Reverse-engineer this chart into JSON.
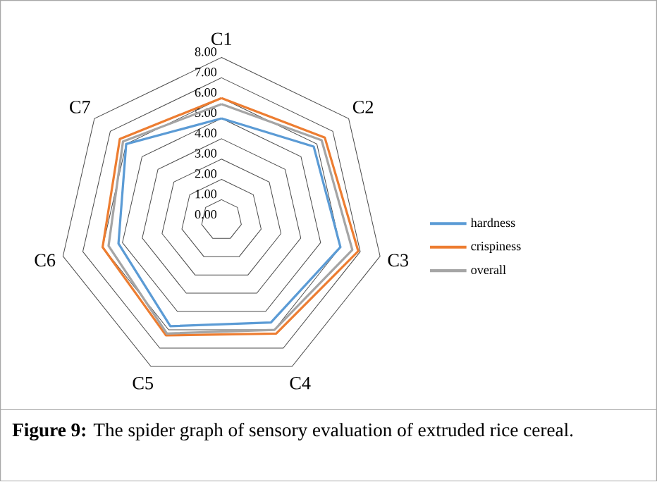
{
  "chart_data": {
    "type": "radar",
    "categories": [
      "C1",
      "C2",
      "C3",
      "C4",
      "C5",
      "C6",
      "C7"
    ],
    "series": [
      {
        "name": "hardness",
        "color": "#5b9bd5",
        "values": [
          5.0,
          5.8,
          6.0,
          5.6,
          5.8,
          5.2,
          6.0
        ]
      },
      {
        "name": "crispiness",
        "color": "#ed7d31",
        "values": [
          6.0,
          6.5,
          6.9,
          6.2,
          6.3,
          6.0,
          6.4
        ]
      },
      {
        "name": "overall",
        "color": "#a5a5a5",
        "values": [
          5.7,
          6.3,
          6.6,
          6.0,
          6.2,
          5.7,
          6.2
        ]
      }
    ],
    "ylim": [
      0,
      8
    ],
    "yticks": [
      {
        "value": 0,
        "label": "0.00"
      },
      {
        "value": 1,
        "label": "1.00"
      },
      {
        "value": 2,
        "label": "2.00"
      },
      {
        "value": 3,
        "label": "3.00"
      },
      {
        "value": 4,
        "label": "4.00"
      },
      {
        "value": 5,
        "label": "5.00"
      },
      {
        "value": 6,
        "label": "6.00"
      },
      {
        "value": 7,
        "label": "7.00"
      },
      {
        "value": 8,
        "label": "8.00"
      }
    ],
    "grid": true,
    "legend": "right",
    "annotations": [
      "**Figure 9:** The spider graph of sensory evaluation of extruded rice cereal."
    ]
  }
}
